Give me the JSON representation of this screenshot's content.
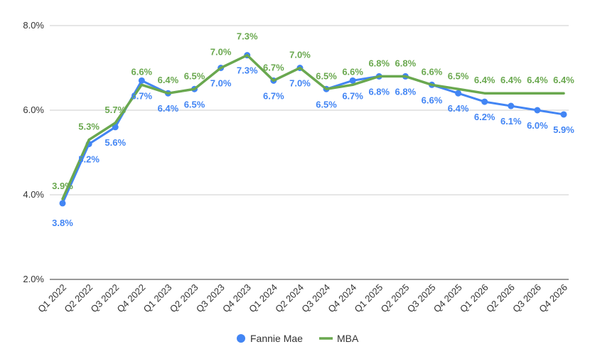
{
  "chart_data": {
    "type": "line",
    "title": "",
    "xlabel": "",
    "ylabel": "",
    "ylim": [
      2.0,
      8.0
    ],
    "yticks": [
      "2.0%",
      "4.0%",
      "6.0%",
      "8.0%"
    ],
    "ytick_values": [
      2.0,
      4.0,
      6.0,
      8.0
    ],
    "categories": [
      "Q1 2022",
      "Q2 2022",
      "Q3 2022",
      "Q4 2022",
      "Q1 2023",
      "Q2 2023",
      "Q3 2023",
      "Q4 2023",
      "Q1 2024",
      "Q2 2024",
      "Q3 2024",
      "Q4 2024",
      "Q1 2025",
      "Q2 2025",
      "Q3 2025",
      "Q4 2025",
      "Q1 2026",
      "Q2 2026",
      "Q3 2026",
      "Q4 2026"
    ],
    "legend_position": "bottom",
    "series": [
      {
        "name": "Fannie Mae",
        "color": "#4285f4",
        "marker": "circle",
        "values": [
          3.8,
          5.2,
          5.6,
          6.7,
          6.4,
          6.5,
          7.0,
          7.3,
          6.7,
          7.0,
          6.5,
          6.7,
          6.8,
          6.8,
          6.6,
          6.4,
          6.2,
          6.1,
          6.0,
          5.9
        ],
        "labels": [
          "3.8%",
          "5.2%",
          "5.6%",
          "6.7%",
          "6.4%",
          "6.5%",
          "7.0%",
          "7.3%",
          "6.7%",
          "7.0%",
          "6.5%",
          "6.7%",
          "6.8%",
          "6.8%",
          "6.6%",
          "6.4%",
          "6.2%",
          "6.1%",
          "6.0%",
          "5.9%"
        ]
      },
      {
        "name": "MBA",
        "color": "#6aa84f",
        "marker": "line",
        "values": [
          3.9,
          5.3,
          5.7,
          6.6,
          6.4,
          6.5,
          7.0,
          7.3,
          6.7,
          7.0,
          6.5,
          6.6,
          6.8,
          6.8,
          6.6,
          6.5,
          6.4,
          6.4,
          6.4,
          6.4
        ],
        "labels": [
          "3.9%",
          "5.3%",
          "5.7%",
          "6.6%",
          "6.4%",
          "6.5%",
          "7.0%",
          "7.3%",
          "6.7%",
          "7.0%",
          "6.5%",
          "6.6%",
          "6.8%",
          "6.8%",
          "6.6%",
          "6.5%",
          "6.4%",
          "6.4%",
          "6.4%",
          "6.4%"
        ]
      }
    ]
  }
}
